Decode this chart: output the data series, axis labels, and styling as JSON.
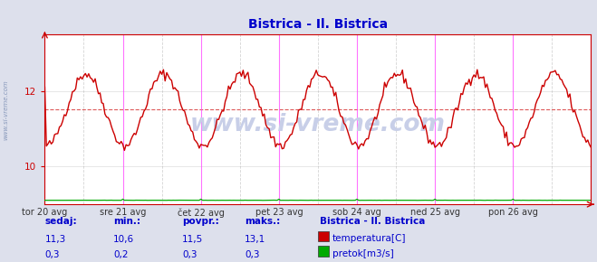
{
  "title": "Bistrica - Il. Bistrica",
  "title_color": "#0000cc",
  "bg_color": "#dde0ec",
  "plot_bg_color": "#ffffff",
  "x_labels": [
    "tor 20 avg",
    "sre 21 avg",
    "čet 22 avg",
    "pet 23 avg",
    "sob 24 avg",
    "ned 25 avg",
    "pon 26 avg"
  ],
  "x_ticks_pos": [
    0,
    48,
    96,
    144,
    192,
    240,
    288
  ],
  "total_points": 337,
  "ylim_temp": [
    9.0,
    13.5
  ],
  "yticks_temp": [
    10,
    12
  ],
  "avg_line_value": 11.5,
  "avg_line_color": "#cc0000",
  "temp_line_color": "#cc0000",
  "flow_line_color": "#00aa00",
  "magenta_vline_color": "#ff44ff",
  "dashed_vline_color": "#aaaaaa",
  "axis_color": "#cc0000",
  "watermark_text": "www.si-vreme.com",
  "watermark_color": "#c8cfe8",
  "sidebar_text": "www.si-vreme.com",
  "sidebar_color": "#8899bb",
  "legend_title": "Bistrica - Il. Bistrica",
  "legend_title_color": "#0000cc",
  "legend_items": [
    {
      "label": "temperatura[C]",
      "color": "#cc0000"
    },
    {
      "label": "pretok[m3/s]",
      "color": "#00aa00"
    }
  ],
  "stats_headers": [
    "sedaj:",
    "min.:",
    "povpr.:",
    "maks.:"
  ],
  "stats_temp": [
    "11,3",
    "10,6",
    "11,5",
    "13,1"
  ],
  "stats_flow": [
    "0,3",
    "0,2",
    "0,3",
    "0,3"
  ],
  "font_color": "#0000cc"
}
